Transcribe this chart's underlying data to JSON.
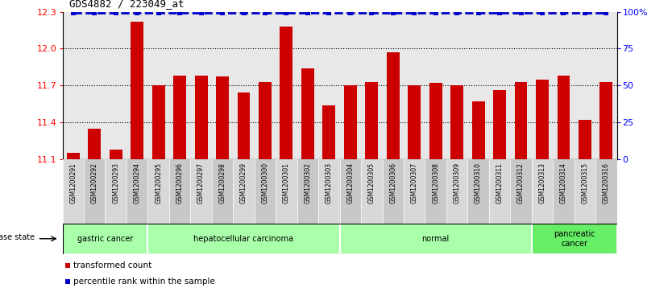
{
  "title": "GDS4882 / 223049_at",
  "categories": [
    "GSM1200291",
    "GSM1200292",
    "GSM1200293",
    "GSM1200294",
    "GSM1200295",
    "GSM1200296",
    "GSM1200297",
    "GSM1200298",
    "GSM1200299",
    "GSM1200300",
    "GSM1200301",
    "GSM1200302",
    "GSM1200303",
    "GSM1200304",
    "GSM1200305",
    "GSM1200306",
    "GSM1200307",
    "GSM1200308",
    "GSM1200309",
    "GSM1200310",
    "GSM1200311",
    "GSM1200312",
    "GSM1200313",
    "GSM1200314",
    "GSM1200315",
    "GSM1200316"
  ],
  "bar_values": [
    11.15,
    11.35,
    11.18,
    12.22,
    11.7,
    11.78,
    11.78,
    11.77,
    11.64,
    11.73,
    12.18,
    11.84,
    11.54,
    11.7,
    11.73,
    11.97,
    11.7,
    11.72,
    11.7,
    11.57,
    11.66,
    11.73,
    11.75,
    11.78,
    11.42,
    11.73
  ],
  "percentile_values": [
    99,
    99,
    99,
    99,
    99,
    99,
    99,
    99,
    99,
    99,
    99,
    99,
    99,
    99,
    99,
    99,
    99,
    99,
    99,
    99,
    99,
    99,
    99,
    99,
    99,
    99
  ],
  "bar_color": "#cc0000",
  "dot_color": "#0000cc",
  "dot_line_color": "#0000cc",
  "ylim_left": [
    11.1,
    12.3
  ],
  "ylim_right": [
    0,
    100
  ],
  "yticks_left": [
    11.1,
    11.4,
    11.7,
    12.0,
    12.3
  ],
  "yticks_right": [
    0,
    25,
    50,
    75,
    100
  ],
  "grid_values": [
    11.4,
    11.7,
    12.0
  ],
  "disease_groups": [
    {
      "label": "gastric cancer",
      "start": 0,
      "end": 4,
      "dark": false
    },
    {
      "label": "hepatocellular carcinoma",
      "start": 4,
      "end": 13,
      "dark": false
    },
    {
      "label": "normal",
      "start": 13,
      "end": 22,
      "dark": false
    },
    {
      "label": "pancreatic\ncancer",
      "start": 22,
      "end": 26,
      "dark": true
    }
  ],
  "disease_state_label": "disease state",
  "legend_red_label": "transformed count",
  "legend_blue_label": "percentile rank within the sample",
  "background_color": "#ffffff",
  "plot_bg_color": "#e8e8e8",
  "tick_area_color": "#d0d0d0",
  "band_light_color": "#aaffaa",
  "band_dark_color": "#66ee66",
  "title_fontsize": 9,
  "bar_width": 0.6
}
